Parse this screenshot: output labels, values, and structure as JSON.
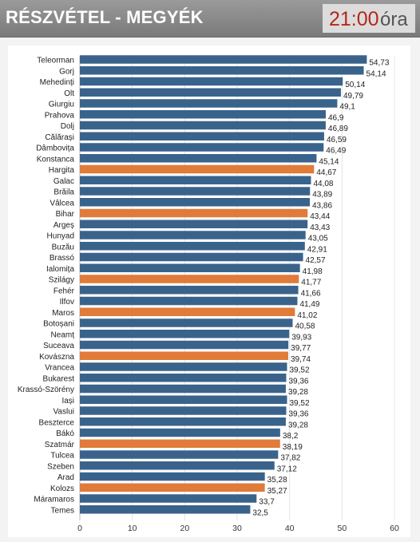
{
  "header": {
    "title": "RÉSZVÉTEL - MEGYÉK",
    "time": "21:00",
    "time_unit": "óra"
  },
  "colors": {
    "blue": "#3a638c",
    "orange": "#e07b39",
    "header_gray": "#8c8c8c",
    "time_red": "#b5271c"
  },
  "chart_data": {
    "type": "bar",
    "orientation": "horizontal",
    "title": "RÉSZVÉTEL - MEGYÉK",
    "xlabel": "",
    "ylabel": "",
    "xlim": [
      0,
      60
    ],
    "ticks": [
      "0",
      "10",
      "20",
      "30",
      "40",
      "50",
      "60"
    ],
    "grid": true,
    "categories": [
      "Teleorman",
      "Gorj",
      "Mehedinți",
      "Olt",
      "Giurgiu",
      "Prahova",
      "Dolj",
      "Călărași",
      "Dâmbovița",
      "Konstanca",
      "Hargita",
      "Galac",
      "Brăila",
      "Vâlcea",
      "Bihar",
      "Argeș",
      "Hunyad",
      "Buzău",
      "Brassó",
      "Ialomița",
      "Szilágy",
      "Fehér",
      "Ilfov",
      "Maros",
      "Botoșani",
      "Neamț",
      "Suceava",
      "Kovászna",
      "Vrancea",
      "Bukarest",
      "Krassó-Szörény",
      "Iași",
      "Vaslui",
      "Beszterce",
      "Bákó",
      "Szatmár",
      "Tulcea",
      "Szeben",
      "Arad",
      "Kolozs",
      "Máramaros",
      "Temes"
    ],
    "values": [
      54.73,
      54.14,
      50.14,
      49.79,
      49.1,
      46.9,
      46.89,
      46.59,
      46.49,
      45.14,
      44.67,
      44.08,
      43.89,
      43.86,
      43.44,
      43.43,
      43.05,
      42.91,
      42.57,
      41.98,
      41.77,
      41.66,
      41.49,
      41.02,
      40.58,
      39.93,
      39.77,
      39.74,
      39.52,
      39.36,
      39.28,
      39.52,
      39.36,
      39.28,
      38.2,
      38.19,
      37.82,
      37.12,
      35.28,
      35.27,
      33.7,
      32.5
    ],
    "value_labels": [
      "54,73",
      "54,14",
      "50,14",
      "49,79",
      "49,1",
      "46,9",
      "46,89",
      "46,59",
      "46,49",
      "45,14",
      "44,67",
      "44,08",
      "43,89",
      "43,86",
      "43,44",
      "43,43",
      "43,05",
      "42,91",
      "42,57",
      "41,98",
      "41,77",
      "41,66",
      "41,49",
      "41,02",
      "40,58",
      "39,93",
      "39,77",
      "39,74",
      "39,52",
      "39,36",
      "39,28",
      "39,52",
      "39,36",
      "39,28",
      "38,2",
      "38,19",
      "37,82",
      "37,12",
      "35,28",
      "35,27",
      "33,7",
      "32,5"
    ],
    "highlighted": [
      "Hargita",
      "Bihar",
      "Szilágy",
      "Maros",
      "Kovászna",
      "Szatmár",
      "Kolozs"
    ]
  }
}
